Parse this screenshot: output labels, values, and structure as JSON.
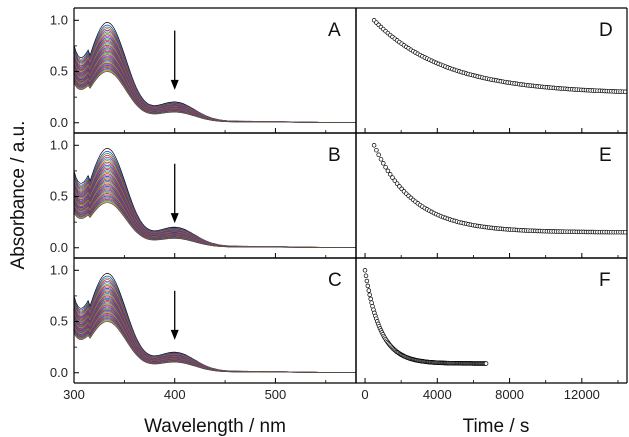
{
  "figure": {
    "ylabel": "Absorbance / a.u.",
    "xlabel_left": "Wavelength / nm",
    "xlabel_right": "Time / s"
  },
  "chart_data": [
    {
      "panel": "A",
      "type": "line",
      "xlabel": "Wavelength / nm",
      "ylabel": "Absorbance / a.u.",
      "xlim": [
        300,
        580
      ],
      "ylim": [
        -0.1,
        1.12
      ],
      "xticks": [
        300,
        400,
        500
      ],
      "yticks": [
        0.0,
        0.5,
        1.0
      ],
      "yticklabels": [
        "0.0",
        "0.5",
        "1.0"
      ],
      "spectra": {
        "count": 40,
        "first_peak": 0.98,
        "last_peak": 0.5,
        "peak_x": 333
      },
      "arrow": {
        "x": 400,
        "from_y": 0.9,
        "to_y": 0.34
      }
    },
    {
      "panel": "B",
      "type": "line",
      "xlabel": "Wavelength / nm",
      "ylabel": "Absorbance / a.u.",
      "xlim": [
        300,
        580
      ],
      "ylim": [
        -0.1,
        1.12
      ],
      "xticks": [
        300,
        400,
        500
      ],
      "yticks": [
        0.0,
        0.5,
        1.0
      ],
      "yticklabels": [
        "0.0",
        "0.5",
        "1.0"
      ],
      "spectra": {
        "count": 40,
        "first_peak": 0.97,
        "last_peak": 0.44,
        "peak_x": 333
      },
      "arrow": {
        "x": 400,
        "from_y": 0.82,
        "to_y": 0.26
      }
    },
    {
      "panel": "C",
      "type": "line",
      "xlabel": "Wavelength / nm",
      "ylabel": "Absorbance / a.u.",
      "xlim": [
        300,
        580
      ],
      "ylim": [
        -0.1,
        1.12
      ],
      "xticks": [
        300,
        400,
        500
      ],
      "xticklabels": [
        "300",
        "400",
        "500"
      ],
      "yticks": [
        0.0,
        0.5,
        1.0
      ],
      "yticklabels": [
        "0.0",
        "0.5",
        "1.0"
      ],
      "spectra": {
        "count": 40,
        "first_peak": 0.97,
        "last_peak": 0.5,
        "peak_x": 333
      },
      "arrow": {
        "x": 400,
        "from_y": 0.8,
        "to_y": 0.34
      }
    },
    {
      "panel": "D",
      "type": "scatter",
      "xlabel": "Time / s",
      "ylabel": "Absorbance / a.u.",
      "xlim": [
        -500,
        14500
      ],
      "ylim": [
        -0.1,
        1.12
      ],
      "xticks": [
        0,
        4000,
        8000,
        12000
      ],
      "decay": {
        "x_start": 500,
        "x_end": 14400,
        "y0": 1.0,
        "y_inf": 0.28,
        "tau": 4000,
        "n": 110
      }
    },
    {
      "panel": "E",
      "type": "scatter",
      "xlabel": "Time / s",
      "ylabel": "Absorbance / a.u.",
      "xlim": [
        -500,
        14500
      ],
      "ylim": [
        -0.1,
        1.12
      ],
      "xticks": [
        0,
        4000,
        8000,
        12000
      ],
      "decay": {
        "x_start": 500,
        "x_end": 14400,
        "y0": 1.0,
        "y_inf": 0.15,
        "tau": 2200,
        "n": 110
      }
    },
    {
      "panel": "F",
      "type": "scatter",
      "xlabel": "Time / s",
      "ylabel": "Absorbance / a.u.",
      "xlim": [
        -500,
        14500
      ],
      "ylim": [
        -0.1,
        1.12
      ],
      "xticks": [
        0,
        4000,
        8000,
        12000
      ],
      "xticklabels": [
        "0",
        "4000",
        "8000",
        "12000"
      ],
      "decay": {
        "x_start": 0,
        "x_end": 6700,
        "y0": 1.0,
        "y_inf": 0.09,
        "tau": 850,
        "n": 130
      }
    }
  ]
}
